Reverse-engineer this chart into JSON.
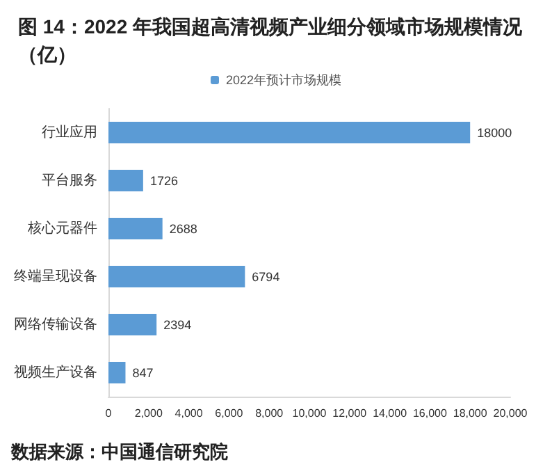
{
  "chart_data": {
    "type": "bar",
    "orientation": "horizontal",
    "title": "图 14：2022 年我国超高清视频产业细分领域市场规模情况（亿）",
    "categories": [
      "行业应用",
      "平台服务",
      "核心元器件",
      "终端呈现设备",
      "网络传输设备",
      "视频生产设备"
    ],
    "series": [
      {
        "name": "2022年预计市场规模",
        "color": "#5b9bd5",
        "values": [
          18000,
          1726,
          2688,
          6794,
          2394,
          847
        ]
      }
    ],
    "xlim": [
      0,
      20000
    ],
    "xticks": [
      0,
      {
        "value": 2000,
        "label": "2,000"
      },
      {
        "value": 4000,
        "label": "4,000"
      },
      {
        "value": 6000,
        "label": "6,000"
      },
      {
        "value": 8000,
        "label": "8,000"
      },
      {
        "value": 10000,
        "label": "10,000"
      },
      {
        "value": 12000,
        "label": "12,000"
      },
      {
        "value": 14000,
        "label": "14,000"
      },
      {
        "value": 16000,
        "label": "16,000"
      },
      {
        "value": 18000,
        "label": "18,000"
      },
      {
        "value": 20000,
        "label": "20,000"
      }
    ],
    "data_labels": true,
    "grid": false,
    "legend": "top",
    "annotations": [
      "数据来源：中国通信研究院"
    ]
  }
}
